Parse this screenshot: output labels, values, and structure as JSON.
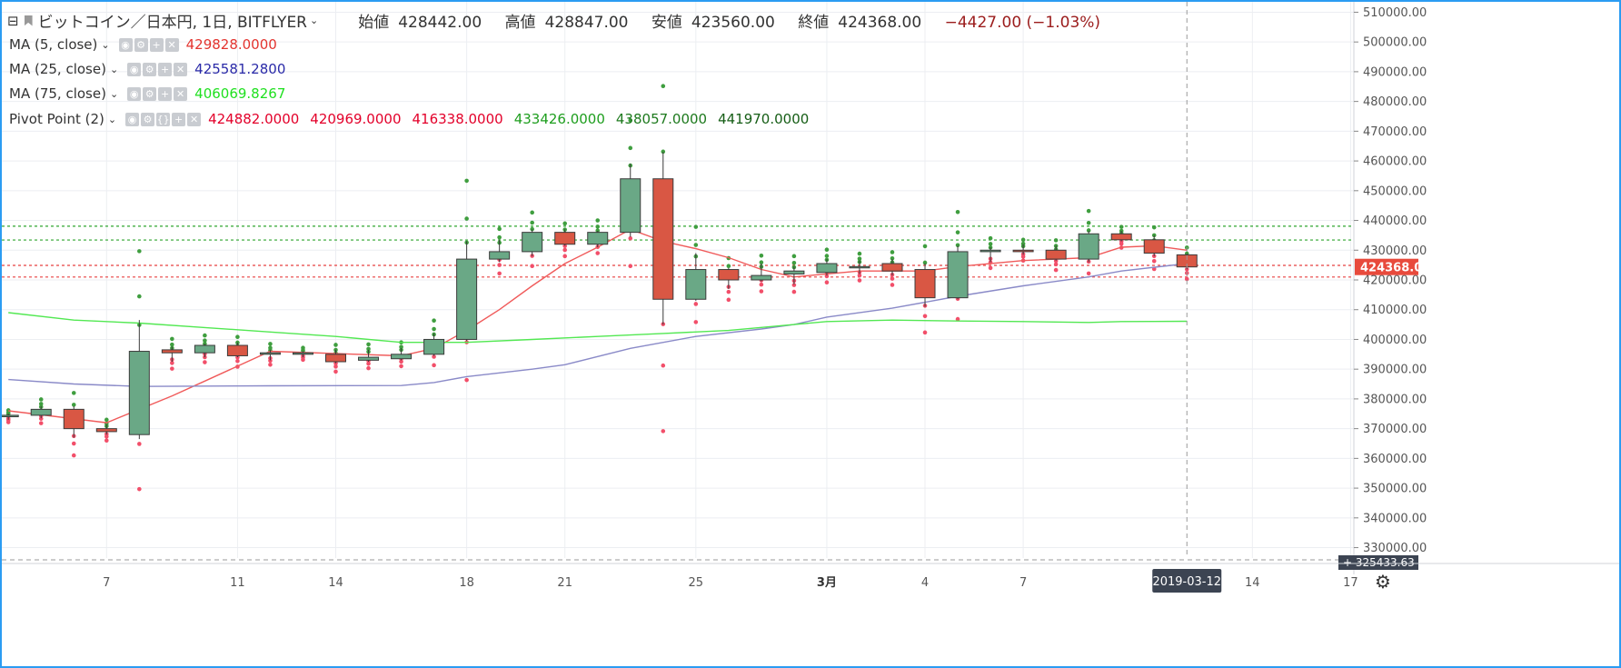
{
  "header": {
    "symbol": "ビットコイン／日本円, 1日, BITFLYER",
    "open_label": "始値",
    "open": "428442.00",
    "high_label": "高値",
    "high": "428847.00",
    "low_label": "安値",
    "low": "423560.00",
    "close_label": "終値",
    "close": "424368.00",
    "change": "−4427.00 (−1.03%)"
  },
  "indicators": [
    {
      "label": "MA (5, close)",
      "values": [
        "429828.0000"
      ],
      "colors": [
        "#e3342f"
      ]
    },
    {
      "label": "MA (25, close)",
      "values": [
        "425581.2800"
      ],
      "colors": [
        "#2a2aa8"
      ]
    },
    {
      "label": "MA (75, close)",
      "values": [
        "406069.8267"
      ],
      "colors": [
        "#1fe01f"
      ]
    },
    {
      "label": "Pivot Point (2)",
      "values": [
        "424882.0000",
        "420969.0000",
        "416338.0000",
        "433426.0000",
        "438057.0000",
        "441970.0000"
      ],
      "colors": [
        "#e3002a",
        "#e3002a",
        "#e3002a",
        "#1e9e1e",
        "#1e7a1e",
        "#155d15"
      ]
    }
  ],
  "chart_data": {
    "type": "candlestick",
    "y_ticks": [
      330000,
      340000,
      350000,
      360000,
      370000,
      380000,
      390000,
      400000,
      410000,
      420000,
      430000,
      440000,
      450000,
      460000,
      470000,
      480000,
      490000,
      500000,
      510000
    ],
    "y_tick_labels": [
      "330000.00",
      "340000.00",
      "350000.00",
      "360000.00",
      "370000.00",
      "380000.00",
      "390000.00",
      "400000.00",
      "410000.00",
      "420000.00",
      "430000.00",
      "440000.00",
      "450000.00",
      "460000.00",
      "470000.00",
      "480000.00",
      "490000.00",
      "500000.00",
      "510000.00"
    ],
    "ylim": [
      326500,
      513500
    ],
    "x_ticks": [
      {
        "label": "7",
        "day": 7
      },
      {
        "label": "11",
        "day": 11
      },
      {
        "label": "14",
        "day": 14
      },
      {
        "label": "18",
        "day": 18
      },
      {
        "label": "21",
        "day": 21
      },
      {
        "label": "25",
        "day": 25
      },
      {
        "label": "3月",
        "day": 29
      },
      {
        "label": "4",
        "day": 32
      },
      {
        "label": "7",
        "day": 35
      },
      {
        "label": "14",
        "day": 42
      },
      {
        "label": "17",
        "day": 45
      }
    ],
    "xlim": [
      3.8,
      45.1
    ],
    "candles": [
      {
        "d": 4,
        "o": 374000,
        "h": 375000,
        "l": 373000,
        "c": 374500
      },
      {
        "d": 5,
        "o": 374500,
        "h": 377500,
        "l": 373500,
        "c": 376500
      },
      {
        "d": 6,
        "o": 376500,
        "h": 377500,
        "l": 367000,
        "c": 370000
      },
      {
        "d": 7,
        "o": 370000,
        "h": 371500,
        "l": 368000,
        "c": 369000
      },
      {
        "d": 8,
        "o": 368000,
        "h": 406500,
        "l": 366500,
        "c": 396000
      },
      {
        "d": 9,
        "o": 396500,
        "h": 397500,
        "l": 392500,
        "c": 395500
      },
      {
        "d": 10,
        "o": 395500,
        "h": 398500,
        "l": 394000,
        "c": 398000
      },
      {
        "d": 11,
        "o": 398000,
        "h": 399000,
        "l": 394000,
        "c": 394500
      },
      {
        "d": 12,
        "o": 395000,
        "h": 396500,
        "l": 393000,
        "c": 395500
      },
      {
        "d": 13,
        "o": 395000,
        "h": 396000,
        "l": 394000,
        "c": 395500
      },
      {
        "d": 14,
        "o": 395000,
        "h": 396500,
        "l": 392000,
        "c": 392500
      },
      {
        "d": 15,
        "o": 393000,
        "h": 396500,
        "l": 392500,
        "c": 394000
      },
      {
        "d": 16,
        "o": 393500,
        "h": 397000,
        "l": 393000,
        "c": 395000
      },
      {
        "d": 17,
        "o": 395000,
        "h": 402000,
        "l": 394500,
        "c": 400000
      },
      {
        "d": 18,
        "o": 400000,
        "h": 433000,
        "l": 399500,
        "c": 427000
      },
      {
        "d": 19,
        "o": 427000,
        "h": 433500,
        "l": 426000,
        "c": 429500
      },
      {
        "d": 20,
        "o": 429500,
        "h": 437000,
        "l": 428000,
        "c": 436000
      },
      {
        "d": 21,
        "o": 436000,
        "h": 437000,
        "l": 431500,
        "c": 432000
      },
      {
        "d": 22,
        "o": 432000,
        "h": 436500,
        "l": 431000,
        "c": 436000
      },
      {
        "d": 23,
        "o": 436000,
        "h": 459000,
        "l": 434500,
        "c": 454000
      },
      {
        "d": 24,
        "o": 454000,
        "h": 463000,
        "l": 405000,
        "c": 413500
      },
      {
        "d": 25,
        "o": 413500,
        "h": 429000,
        "l": 413000,
        "c": 423500
      },
      {
        "d": 26,
        "o": 423500,
        "h": 424000,
        "l": 417000,
        "c": 420000
      },
      {
        "d": 27,
        "o": 420000,
        "h": 425500,
        "l": 419500,
        "c": 421500
      },
      {
        "d": 28,
        "o": 422000,
        "h": 424500,
        "l": 418500,
        "c": 423000
      },
      {
        "d": 29,
        "o": 422500,
        "h": 427000,
        "l": 421500,
        "c": 425500
      },
      {
        "d": 30,
        "o": 424500,
        "h": 426500,
        "l": 422000,
        "c": 424500
      },
      {
        "d": 31,
        "o": 425500,
        "h": 427000,
        "l": 421500,
        "c": 423000
      },
      {
        "d": 32,
        "o": 423500,
        "h": 425500,
        "l": 411000,
        "c": 414000
      },
      {
        "d": 33,
        "o": 414000,
        "h": 431500,
        "l": 413500,
        "c": 429500
      },
      {
        "d": 34,
        "o": 429500,
        "h": 431000,
        "l": 426000,
        "c": 430000
      },
      {
        "d": 35,
        "o": 430000,
        "h": 432000,
        "l": 428500,
        "c": 429500
      },
      {
        "d": 36,
        "o": 430000,
        "h": 431500,
        "l": 426500,
        "c": 427000
      },
      {
        "d": 37,
        "o": 427000,
        "h": 436500,
        "l": 426000,
        "c": 435500
      },
      {
        "d": 38,
        "o": 435500,
        "h": 436500,
        "l": 433000,
        "c": 433500
      },
      {
        "d": 39,
        "o": 433500,
        "h": 435000,
        "l": 428000,
        "c": 429000
      },
      {
        "d": 40,
        "o": 428442,
        "h": 428847,
        "l": 423560,
        "c": 424368
      }
    ],
    "ma_series": [
      {
        "name": "MA (5, close)",
        "color": "#f05a5a",
        "points": [
          [
            4,
            376000
          ],
          [
            7,
            372000
          ],
          [
            9,
            381000
          ],
          [
            10,
            386000
          ],
          [
            12,
            396000
          ],
          [
            16,
            394500
          ],
          [
            17,
            397000
          ],
          [
            18,
            403000
          ],
          [
            19,
            410000
          ],
          [
            20,
            418000
          ],
          [
            21,
            425500
          ],
          [
            22,
            431000
          ],
          [
            23,
            437000
          ],
          [
            24,
            433000
          ],
          [
            25,
            430500
          ],
          [
            26,
            427500
          ],
          [
            27,
            423500
          ],
          [
            28,
            421000
          ],
          [
            30,
            423000
          ],
          [
            32,
            423000
          ],
          [
            33,
            424500
          ],
          [
            35,
            426500
          ],
          [
            37,
            427500
          ],
          [
            38,
            431000
          ],
          [
            39,
            431500
          ],
          [
            40,
            430000
          ]
        ]
      },
      {
        "name": "MA (25, close)",
        "color": "#8a8ac8",
        "points": [
          [
            4,
            386500
          ],
          [
            6,
            385000
          ],
          [
            8,
            384200
          ],
          [
            12,
            384400
          ],
          [
            16,
            384500
          ],
          [
            17,
            385500
          ],
          [
            18,
            387500
          ],
          [
            20,
            390000
          ],
          [
            21,
            391500
          ],
          [
            23,
            397000
          ],
          [
            25,
            401000
          ],
          [
            27,
            403500
          ],
          [
            28,
            405000
          ],
          [
            29,
            407500
          ],
          [
            31,
            410500
          ],
          [
            33,
            414500
          ],
          [
            35,
            418000
          ],
          [
            37,
            421000
          ],
          [
            38,
            423000
          ],
          [
            40,
            425500
          ]
        ]
      },
      {
        "name": "MA (75, close)",
        "color": "#52e852",
        "points": [
          [
            4,
            409000
          ],
          [
            6,
            406500
          ],
          [
            8,
            405500
          ],
          [
            10,
            404000
          ],
          [
            12,
            402500
          ],
          [
            14,
            401000
          ],
          [
            16,
            399000
          ],
          [
            17,
            399000
          ],
          [
            18,
            399000
          ],
          [
            20,
            400000
          ],
          [
            22,
            401000
          ],
          [
            24,
            402000
          ],
          [
            26,
            403000
          ],
          [
            28,
            405000
          ],
          [
            29,
            406000
          ],
          [
            31,
            406500
          ],
          [
            33,
            406200
          ],
          [
            35,
            406000
          ],
          [
            37,
            405700
          ],
          [
            38,
            406000
          ],
          [
            40,
            406100
          ]
        ]
      }
    ],
    "pivot_levels": [
      {
        "value": 438057,
        "color": "#2fa52f"
      },
      {
        "value": 433426,
        "color": "#2fa52f"
      },
      {
        "value": 424882,
        "color": "#e84040"
      },
      {
        "value": 420969,
        "color": "#e84040"
      }
    ],
    "last_price_label": "424368.00",
    "bottom_price_label": "325433.63",
    "crosshair_date": "2019-03-12",
    "crosshair_day": 40
  }
}
